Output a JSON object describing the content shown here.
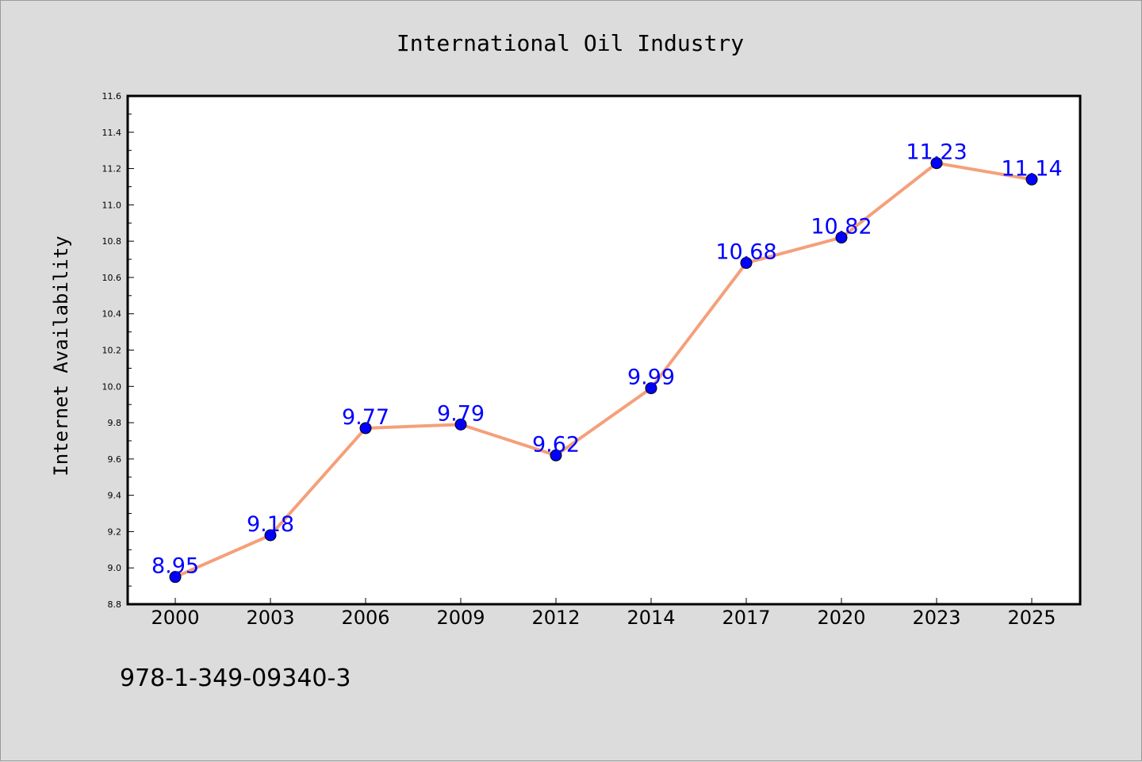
{
  "chart_data": {
    "type": "line",
    "title": "International Oil Industry",
    "xlabel": "",
    "ylabel": "Internet Availability",
    "categories": [
      "2000",
      "2003",
      "2006",
      "2009",
      "2012",
      "2014",
      "2017",
      "2020",
      "2023",
      "2025"
    ],
    "series": [
      {
        "values": [
          8.95,
          9.18,
          9.77,
          9.79,
          9.62,
          9.99,
          10.68,
          10.82,
          11.23,
          11.14
        ],
        "line_color": "#f4a07a",
        "marker_color": "#0000ff"
      }
    ],
    "data_labels": [
      "8.95",
      "9.18",
      "9.77",
      "9.79",
      "9.62",
      "9.99",
      "10.68",
      "10.82",
      "11.23",
      "11.14"
    ],
    "data_label_color": "#0000ff",
    "ylim": [
      8.8,
      11.6
    ],
    "yticks": [
      "8.8",
      "9.0",
      "9.2",
      "9.4",
      "9.6",
      "9.8",
      "10.0",
      "10.2",
      "10.4",
      "10.6",
      "10.8",
      "11.0",
      "11.2",
      "11.4",
      "11.6"
    ],
    "grid": false,
    "legend": "none"
  },
  "footnote": "978-1-349-09340-3",
  "colors": {
    "background": "#dcdcdc",
    "plot_background": "#ffffff",
    "axes": "#000000"
  }
}
